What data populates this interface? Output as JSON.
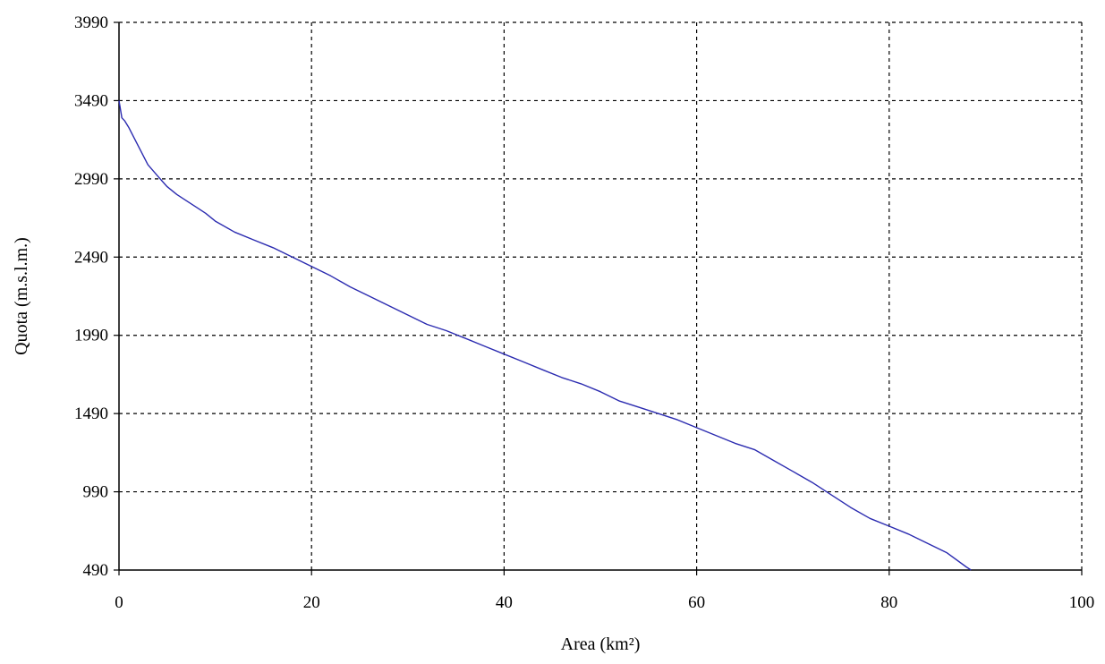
{
  "chart_data": {
    "type": "line",
    "title": "",
    "xlabel": "Area (km²)",
    "ylabel": "Quota (m.s.l.m.)",
    "xlim": [
      0,
      100
    ],
    "ylim": [
      490,
      3990
    ],
    "x_ticks": [
      0,
      20,
      40,
      60,
      80,
      100
    ],
    "y_ticks": [
      490,
      990,
      1490,
      1990,
      2490,
      2990,
      3490,
      3990
    ],
    "x_tick_labels": [
      "0",
      "20",
      "40",
      "60",
      "80",
      "100"
    ],
    "y_tick_labels": [
      "490",
      "990",
      "1490",
      "1990",
      "2490",
      "2990",
      "3490",
      "3990"
    ],
    "grid": true,
    "grid_style": "dashed",
    "legend": "none",
    "colors": {
      "line": "#2b2bb0",
      "grid": "#000000",
      "axis": "#000000"
    },
    "series": [
      {
        "x": [
          0,
          0.3,
          0.6,
          1.0,
          1.5,
          2.0,
          2.5,
          3.0,
          4.0,
          5.0,
          6.0,
          7.0,
          8.0,
          9.0,
          10.0,
          12.0,
          14.0,
          16.0,
          18.0,
          20.0,
          22.0,
          24.0,
          26.0,
          28.0,
          30.0,
          32.0,
          34.0,
          36.0,
          38.0,
          40.0,
          42.0,
          44.0,
          46.0,
          48.0,
          50.0,
          52.0,
          54.0,
          56.0,
          58.0,
          60.0,
          62.0,
          64.0,
          66.0,
          68.0,
          70.0,
          72.0,
          74.0,
          76.0,
          78.0,
          80.0,
          82.0,
          84.0,
          86.0,
          88.0,
          88.5
        ],
        "y": [
          3490,
          3380,
          3360,
          3320,
          3260,
          3200,
          3140,
          3080,
          3010,
          2940,
          2890,
          2850,
          2810,
          2770,
          2720,
          2650,
          2600,
          2550,
          2490,
          2430,
          2370,
          2300,
          2240,
          2180,
          2120,
          2060,
          2020,
          1970,
          1920,
          1870,
          1820,
          1770,
          1720,
          1680,
          1630,
          1570,
          1530,
          1490,
          1450,
          1400,
          1350,
          1300,
          1260,
          1190,
          1120,
          1050,
          970,
          890,
          820,
          770,
          720,
          660,
          600,
          510,
          490
        ]
      }
    ]
  }
}
